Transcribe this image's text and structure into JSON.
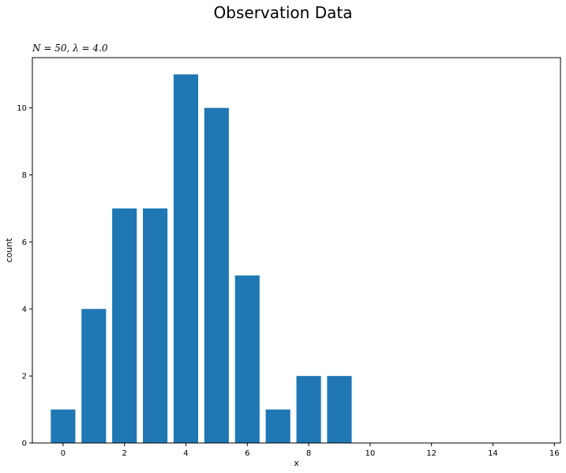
{
  "figure": {
    "title": "Observation Data"
  },
  "chart_data": {
    "type": "bar",
    "title": "N = 50, λ = 4.0",
    "xlabel": "x",
    "ylabel": "count",
    "x": [
      0,
      1,
      2,
      3,
      4,
      5,
      6,
      7,
      8,
      9
    ],
    "values": [
      1,
      4,
      7,
      7,
      11,
      10,
      5,
      1,
      2,
      2
    ],
    "xlim": [
      -1,
      16.2
    ],
    "ylim": [
      0,
      11.5
    ],
    "xticks": [
      0,
      2,
      4,
      6,
      8,
      10,
      12,
      14,
      16
    ],
    "yticks": [
      0,
      2,
      4,
      6,
      8,
      10
    ],
    "bar_color": "#1f77b4",
    "grid": false,
    "legend": false
  }
}
